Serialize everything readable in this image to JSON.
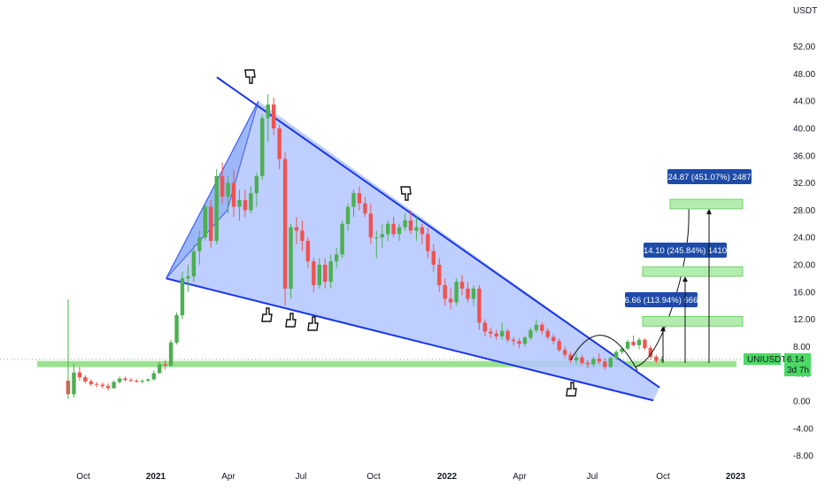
{
  "chart_data": {
    "type": "candlestick",
    "symbol": "UNIUSDT",
    "last_price": "6.14",
    "countdown": "3d 7h",
    "currency_label": "USDT",
    "y_ticks": [
      "52.00",
      "48.00",
      "44.00",
      "40.00",
      "36.00",
      "32.00",
      "28.00",
      "24.00",
      "20.00",
      "16.00",
      "12.00",
      "8.00",
      "4.00",
      "0.00",
      "-4.00",
      "-8.00"
    ],
    "x_ticks": [
      {
        "label": "Oct",
        "bold": false
      },
      {
        "label": "2021",
        "bold": true
      },
      {
        "label": "Apr",
        "bold": false
      },
      {
        "label": "Jul",
        "bold": false
      },
      {
        "label": "Oct",
        "bold": false
      },
      {
        "label": "2022",
        "bold": true
      },
      {
        "label": "Apr",
        "bold": false
      },
      {
        "label": "Jul",
        "bold": false
      },
      {
        "label": "Oct",
        "bold": false
      },
      {
        "label": "2023",
        "bold": true
      }
    ],
    "ylim": [
      -8,
      52
    ],
    "candles": [
      [
        3.0,
        4.3,
        0.5,
        1.0
      ],
      [
        1.0,
        5.5,
        0.5,
        4.2
      ],
      [
        4.2,
        5.0,
        3.0,
        3.5
      ],
      [
        3.5,
        3.8,
        2.6,
        2.9
      ],
      [
        2.9,
        3.2,
        2.2,
        2.5
      ],
      [
        2.5,
        2.8,
        2.0,
        2.4
      ],
      [
        2.4,
        2.7,
        1.9,
        2.2
      ],
      [
        2.2,
        2.6,
        1.6,
        1.9
      ],
      [
        1.9,
        3.0,
        1.8,
        2.8
      ],
      [
        2.8,
        3.6,
        2.6,
        3.3
      ],
      [
        3.3,
        3.6,
        2.9,
        3.1
      ],
      [
        3.1,
        3.4,
        2.8,
        3.0
      ],
      [
        3.0,
        3.2,
        2.7,
        2.9
      ],
      [
        2.9,
        3.2,
        2.6,
        3.0
      ],
      [
        3.0,
        3.3,
        2.8,
        3.2
      ],
      [
        3.2,
        4.5,
        3.0,
        4.1
      ],
      [
        4.1,
        5.8,
        4.0,
        5.4
      ],
      [
        5.4,
        6.0,
        4.6,
        5.2
      ],
      [
        5.2,
        9.0,
        5.0,
        8.6
      ],
      [
        8.6,
        13.0,
        8.3,
        12.6
      ],
      [
        12.6,
        19.0,
        12.0,
        18.0
      ],
      [
        18.0,
        20.0,
        16.0,
        18.3
      ],
      [
        18.3,
        23.0,
        17.5,
        22.0
      ],
      [
        22.0,
        25.0,
        20.0,
        24.0
      ],
      [
        24.0,
        29.0,
        23.5,
        28.5
      ],
      [
        28.5,
        29.5,
        22.5,
        23.5
      ],
      [
        23.5,
        34.0,
        23.0,
        33.0
      ],
      [
        33.0,
        35.0,
        29.0,
        30.0
      ],
      [
        30.0,
        33.0,
        27.5,
        32.0
      ],
      [
        32.0,
        34.0,
        27.0,
        28.5
      ],
      [
        28.5,
        31.0,
        26.5,
        29.5
      ],
      [
        29.5,
        31.0,
        27.0,
        28.0
      ],
      [
        28.0,
        31.5,
        27.5,
        30.5
      ],
      [
        30.5,
        33.5,
        28.5,
        33.0
      ],
      [
        33.0,
        42.0,
        32.5,
        41.5
      ],
      [
        41.5,
        45.0,
        38.0,
        43.5
      ],
      [
        43.5,
        44.5,
        39.0,
        40.0
      ],
      [
        40.0,
        40.5,
        34.0,
        35.5
      ],
      [
        35.5,
        36.5,
        14.0,
        16.5
      ],
      [
        16.5,
        26.0,
        15.0,
        25.5
      ],
      [
        25.5,
        27.0,
        23.0,
        25.0
      ],
      [
        25.0,
        26.5,
        22.0,
        23.5
      ],
      [
        23.5,
        24.0,
        19.5,
        20.5
      ],
      [
        20.5,
        21.0,
        16.0,
        17.0
      ],
      [
        17.0,
        21.0,
        16.5,
        20.0
      ],
      [
        20.0,
        21.0,
        16.5,
        17.5
      ],
      [
        17.5,
        21.5,
        16.5,
        20.5
      ],
      [
        20.5,
        22.5,
        19.5,
        21.5
      ],
      [
        21.5,
        26.5,
        21.0,
        26.0
      ],
      [
        26.0,
        29.0,
        25.0,
        28.5
      ],
      [
        28.5,
        31.0,
        27.0,
        30.5
      ],
      [
        30.5,
        31.5,
        28.0,
        29.0
      ],
      [
        29.0,
        30.0,
        27.0,
        27.5
      ],
      [
        27.5,
        29.0,
        23.0,
        24.0
      ],
      [
        24.0,
        25.0,
        21.0,
        24.0
      ],
      [
        24.0,
        26.0,
        22.5,
        24.5
      ],
      [
        24.5,
        26.5,
        23.5,
        26.0
      ],
      [
        26.0,
        27.0,
        24.0,
        24.5
      ],
      [
        24.5,
        26.0,
        23.5,
        25.5
      ],
      [
        25.5,
        27.5,
        25.0,
        26.5
      ],
      [
        26.5,
        28.0,
        24.5,
        25.0
      ],
      [
        25.0,
        27.0,
        23.5,
        25.5
      ],
      [
        25.5,
        26.0,
        23.0,
        24.5
      ],
      [
        24.5,
        25.5,
        21.0,
        22.0
      ],
      [
        22.0,
        23.0,
        19.0,
        20.0
      ],
      [
        20.0,
        21.0,
        16.0,
        17.0
      ],
      [
        17.0,
        18.0,
        14.0,
        15.0
      ],
      [
        15.0,
        16.5,
        13.5,
        14.5
      ],
      [
        14.5,
        18.0,
        14.0,
        17.5
      ],
      [
        17.5,
        18.5,
        15.5,
        16.5
      ],
      [
        16.5,
        17.5,
        14.5,
        15.0
      ],
      [
        15.0,
        17.0,
        14.0,
        16.5
      ],
      [
        16.5,
        17.0,
        10.5,
        11.5
      ],
      [
        11.5,
        12.0,
        9.5,
        10.2
      ],
      [
        10.2,
        10.8,
        9.3,
        9.9
      ],
      [
        9.9,
        10.5,
        9.0,
        9.5
      ],
      [
        9.5,
        11.5,
        9.0,
        10.3
      ],
      [
        10.3,
        10.6,
        8.6,
        9.0
      ],
      [
        9.0,
        9.4,
        8.2,
        8.8
      ],
      [
        8.8,
        9.2,
        7.8,
        8.4
      ],
      [
        8.4,
        9.6,
        8.0,
        9.3
      ],
      [
        9.3,
        10.8,
        9.0,
        10.4
      ],
      [
        10.4,
        12.0,
        10.0,
        11.2
      ],
      [
        11.2,
        11.6,
        9.8,
        10.3
      ],
      [
        10.3,
        10.7,
        9.0,
        9.4
      ],
      [
        9.4,
        9.8,
        8.3,
        8.8
      ],
      [
        8.8,
        9.2,
        7.2,
        7.5
      ],
      [
        7.5,
        8.0,
        6.3,
        6.8
      ],
      [
        6.8,
        7.2,
        5.6,
        6.0
      ],
      [
        6.0,
        7.0,
        5.5,
        6.4
      ],
      [
        6.4,
        6.8,
        5.3,
        5.6
      ],
      [
        5.6,
        6.0,
        4.8,
        5.4
      ],
      [
        5.4,
        6.5,
        5.0,
        6.2
      ],
      [
        6.2,
        7.0,
        5.4,
        5.8
      ],
      [
        5.8,
        6.3,
        4.6,
        5.0
      ],
      [
        5.0,
        6.5,
        4.9,
        6.3
      ],
      [
        6.3,
        7.5,
        6.0,
        7.2
      ],
      [
        7.2,
        8.0,
        6.9,
        7.7
      ],
      [
        7.7,
        9.0,
        7.5,
        8.7
      ],
      [
        8.7,
        9.6,
        8.0,
        8.2
      ],
      [
        8.2,
        9.3,
        7.6,
        9.0
      ],
      [
        9.0,
        9.2,
        7.5,
        7.8
      ],
      [
        7.8,
        8.2,
        6.1,
        6.5
      ],
      [
        6.5,
        6.8,
        5.5,
        5.9
      ],
      [
        5.9,
        6.6,
        5.7,
        6.14
      ]
    ],
    "support_line": 5.5,
    "projections": [
      {
        "label": "6.66 (113.94%) 666",
        "target_low": 11.0,
        "target_high": 12.4
      },
      {
        "label": "14.10 (245.84%) 1410",
        "target_low": 18.3,
        "target_high": 19.7
      },
      {
        "label": "24.87 (451.07%) 2487",
        "target_low": 28.2,
        "target_high": 29.6
      }
    ],
    "annotations": [
      "hand-pointer-down",
      "hand-pointer-down",
      "hand-pointer-up",
      "hand-pointer-up",
      "hand-pointer-up",
      "hand-pointer-up"
    ],
    "colors": {
      "up": "#26a69a",
      "up_bright": "#4caf50",
      "down": "#ef5350",
      "wedge_fill": "#b3c6ff",
      "wedge_stroke": "#1a36e6",
      "support": "#8bdc7c",
      "target_box": "#b4ecb0",
      "label_bg": "#1e4ba8",
      "ticker_bg": "#4cd964"
    }
  }
}
